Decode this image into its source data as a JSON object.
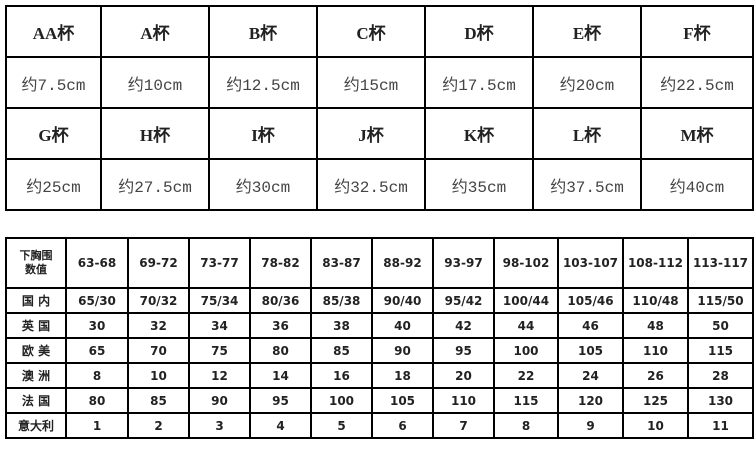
{
  "cup_table": {
    "rows": [
      {
        "cups": [
          "AA杯",
          "A杯",
          "B杯",
          "C杯",
          "D杯",
          "E杯",
          "F杯"
        ],
        "depths": [
          "约7.5cm",
          "约10cm",
          "约12.5cm",
          "约15cm",
          "约17.5cm",
          "约20cm",
          "约22.5cm"
        ]
      },
      {
        "cups": [
          "G杯",
          "H杯",
          "I杯",
          "J杯",
          "K杯",
          "L杯",
          "M杯"
        ],
        "depths": [
          "约25cm",
          "约27.5cm",
          "约30cm",
          "约32.5cm",
          "约35cm",
          "约37.5cm",
          "约40cm"
        ]
      }
    ]
  },
  "size_table": {
    "header_label_line1": "下胸围",
    "header_label_line2": "数值",
    "underbust": [
      "63-68",
      "69-72",
      "73-77",
      "78-82",
      "83-87",
      "88-92",
      "93-97",
      "98-102",
      "103-107",
      "108-112",
      "113-117"
    ],
    "rows": [
      {
        "label": "国 内",
        "values": [
          "65/30",
          "70/32",
          "75/34",
          "80/36",
          "85/38",
          "90/40",
          "95/42",
          "100/44",
          "105/46",
          "110/48",
          "115/50"
        ]
      },
      {
        "label": "英 国",
        "values": [
          "30",
          "32",
          "34",
          "36",
          "38",
          "40",
          "42",
          "44",
          "46",
          "48",
          "50"
        ]
      },
      {
        "label": "欧 美",
        "values": [
          "65",
          "70",
          "75",
          "80",
          "85",
          "90",
          "95",
          "100",
          "105",
          "110",
          "115"
        ]
      },
      {
        "label": "澳 洲",
        "values": [
          "8",
          "10",
          "12",
          "14",
          "16",
          "18",
          "20",
          "22",
          "24",
          "26",
          "28"
        ]
      },
      {
        "label": "法 国",
        "values": [
          "80",
          "85",
          "90",
          "95",
          "100",
          "105",
          "110",
          "115",
          "120",
          "125",
          "130"
        ]
      },
      {
        "label": "意大利",
        "values": [
          "1",
          "2",
          "3",
          "4",
          "5",
          "6",
          "7",
          "8",
          "9",
          "10",
          "11"
        ]
      }
    ]
  }
}
